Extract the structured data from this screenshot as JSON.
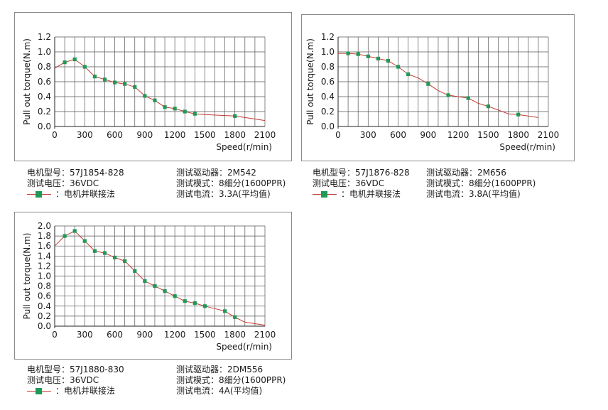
{
  "style": {
    "line_color": "#c23b32",
    "marker_color": "#1d9a55",
    "grid_color": "#555555"
  },
  "chart_data": [
    {
      "type": "line",
      "xlabel": "Speed(r/min)",
      "ylabel": "Pull out torque(N.m)",
      "xlim": [
        0,
        2100
      ],
      "ylim": [
        0,
        1.2
      ],
      "x_ticks": [
        "0",
        "300",
        "600",
        "900",
        "1200",
        "1500",
        "1800",
        "2100"
      ],
      "y_ticks": [
        "0.0",
        "0.2",
        "0.4",
        "0.6",
        "0.8",
        "1.0",
        "1.2"
      ],
      "grid": true,
      "curve_x": [
        0,
        100,
        200,
        300,
        400,
        500,
        600,
        700,
        800,
        900,
        1000,
        1100,
        1200,
        1300,
        1400,
        1500,
        1800,
        2100
      ],
      "curve_y": [
        0.78,
        0.86,
        0.9,
        0.8,
        0.67,
        0.63,
        0.59,
        0.57,
        0.53,
        0.41,
        0.35,
        0.26,
        0.24,
        0.2,
        0.17,
        0.16,
        0.14,
        0.08
      ],
      "marker_x": [
        100,
        200,
        300,
        400,
        500,
        600,
        700,
        800,
        900,
        1000,
        1100,
        1200,
        1300,
        1400,
        1800
      ],
      "marker_y": [
        0.86,
        0.9,
        0.8,
        0.67,
        0.63,
        0.59,
        0.57,
        0.53,
        0.41,
        0.35,
        0.26,
        0.24,
        0.2,
        0.17,
        0.14
      ]
    },
    {
      "type": "line",
      "xlabel": "Speed(r/min)",
      "ylabel": "Pull out torque(N.m)",
      "xlim": [
        0,
        2100
      ],
      "ylim": [
        0,
        1.2
      ],
      "x_ticks": [
        "0",
        "300",
        "600",
        "900",
        "1200",
        "1500",
        "1800",
        "2100"
      ],
      "y_ticks": [
        "0.0",
        "0.2",
        "0.4",
        "0.6",
        "0.8",
        "1.0",
        "1.2"
      ],
      "grid": true,
      "curve_x": [
        0,
        100,
        200,
        300,
        400,
        500,
        600,
        700,
        800,
        900,
        1000,
        1100,
        1300,
        1400,
        1500,
        1600,
        1700,
        1800,
        2000
      ],
      "curve_y": [
        0.98,
        0.98,
        0.97,
        0.94,
        0.91,
        0.88,
        0.8,
        0.7,
        0.65,
        0.57,
        0.48,
        0.42,
        0.38,
        0.31,
        0.27,
        0.22,
        0.17,
        0.16,
        0.12
      ],
      "marker_x": [
        100,
        200,
        300,
        400,
        500,
        600,
        700,
        900,
        1100,
        1300,
        1500,
        1800
      ],
      "marker_y": [
        0.98,
        0.97,
        0.94,
        0.91,
        0.88,
        0.8,
        0.7,
        0.57,
        0.42,
        0.38,
        0.27,
        0.16
      ]
    },
    {
      "type": "line",
      "xlabel": "Speed(r/min)",
      "ylabel": "Pull out torque(N.m)",
      "xlim": [
        0,
        2100
      ],
      "ylim": [
        0,
        2.0
      ],
      "x_ticks": [
        "0",
        "300",
        "600",
        "900",
        "1200",
        "1500",
        "1800",
        "2100"
      ],
      "y_ticks": [
        "0.0",
        "0.2",
        "0.4",
        "0.6",
        "0.8",
        "1.0",
        "1.2",
        "1.4",
        "1.6",
        "1.8",
        "2.0"
      ],
      "grid": true,
      "curve_x": [
        0,
        100,
        200,
        300,
        400,
        500,
        600,
        700,
        800,
        900,
        1000,
        1100,
        1200,
        1300,
        1400,
        1500,
        1600,
        1700,
        1800,
        1900,
        2100
      ],
      "curve_y": [
        1.6,
        1.8,
        1.9,
        1.7,
        1.5,
        1.46,
        1.37,
        1.3,
        1.1,
        0.9,
        0.8,
        0.7,
        0.6,
        0.5,
        0.46,
        0.4,
        0.35,
        0.3,
        0.18,
        0.08,
        0.02
      ],
      "marker_x": [
        100,
        200,
        300,
        400,
        500,
        600,
        700,
        800,
        900,
        1000,
        1100,
        1200,
        1300,
        1400,
        1500,
        1700,
        1800
      ],
      "marker_y": [
        1.8,
        1.9,
        1.7,
        1.5,
        1.46,
        1.37,
        1.3,
        1.1,
        0.9,
        0.8,
        0.7,
        0.6,
        0.5,
        0.46,
        0.4,
        0.3,
        0.18
      ]
    }
  ],
  "panels": [
    {
      "model_label": "电机型号：",
      "model_value": "57J1854-828",
      "voltage_label": "测试电压：",
      "voltage_value": "36VDC",
      "legend_text": "：电机并联接法",
      "driver_label": "测试驱动器：",
      "driver_value": "2M542",
      "mode_label": "测试模式：",
      "mode_value": "8细分(1600PPR)",
      "current_label": "测试电流：",
      "current_value": "3.3A(平均值)"
    },
    {
      "model_label": "电机型号：",
      "model_value": "57J1876-828",
      "voltage_label": "测试电压：",
      "voltage_value": "36VDC",
      "legend_text": "：电机并联接法",
      "driver_label": "测试驱动器：",
      "driver_value": "2M656",
      "mode_label": "测试模式：",
      "mode_value": "8细分(1600PPR)",
      "current_label": "测试电流：",
      "current_value": "3.8A(平均值)"
    },
    {
      "model_label": "电机型号：",
      "model_value": "57J1880-830",
      "voltage_label": "测试电压：",
      "voltage_value": "36VDC",
      "legend_text": "：电机并联接法",
      "driver_label": "测试驱动器：",
      "driver_value": "2DM556",
      "mode_label": "测试模式：",
      "mode_value": "8细分(1600PPR)",
      "current_label": "测试电流：",
      "current_value": "4A(平均值)"
    }
  ]
}
